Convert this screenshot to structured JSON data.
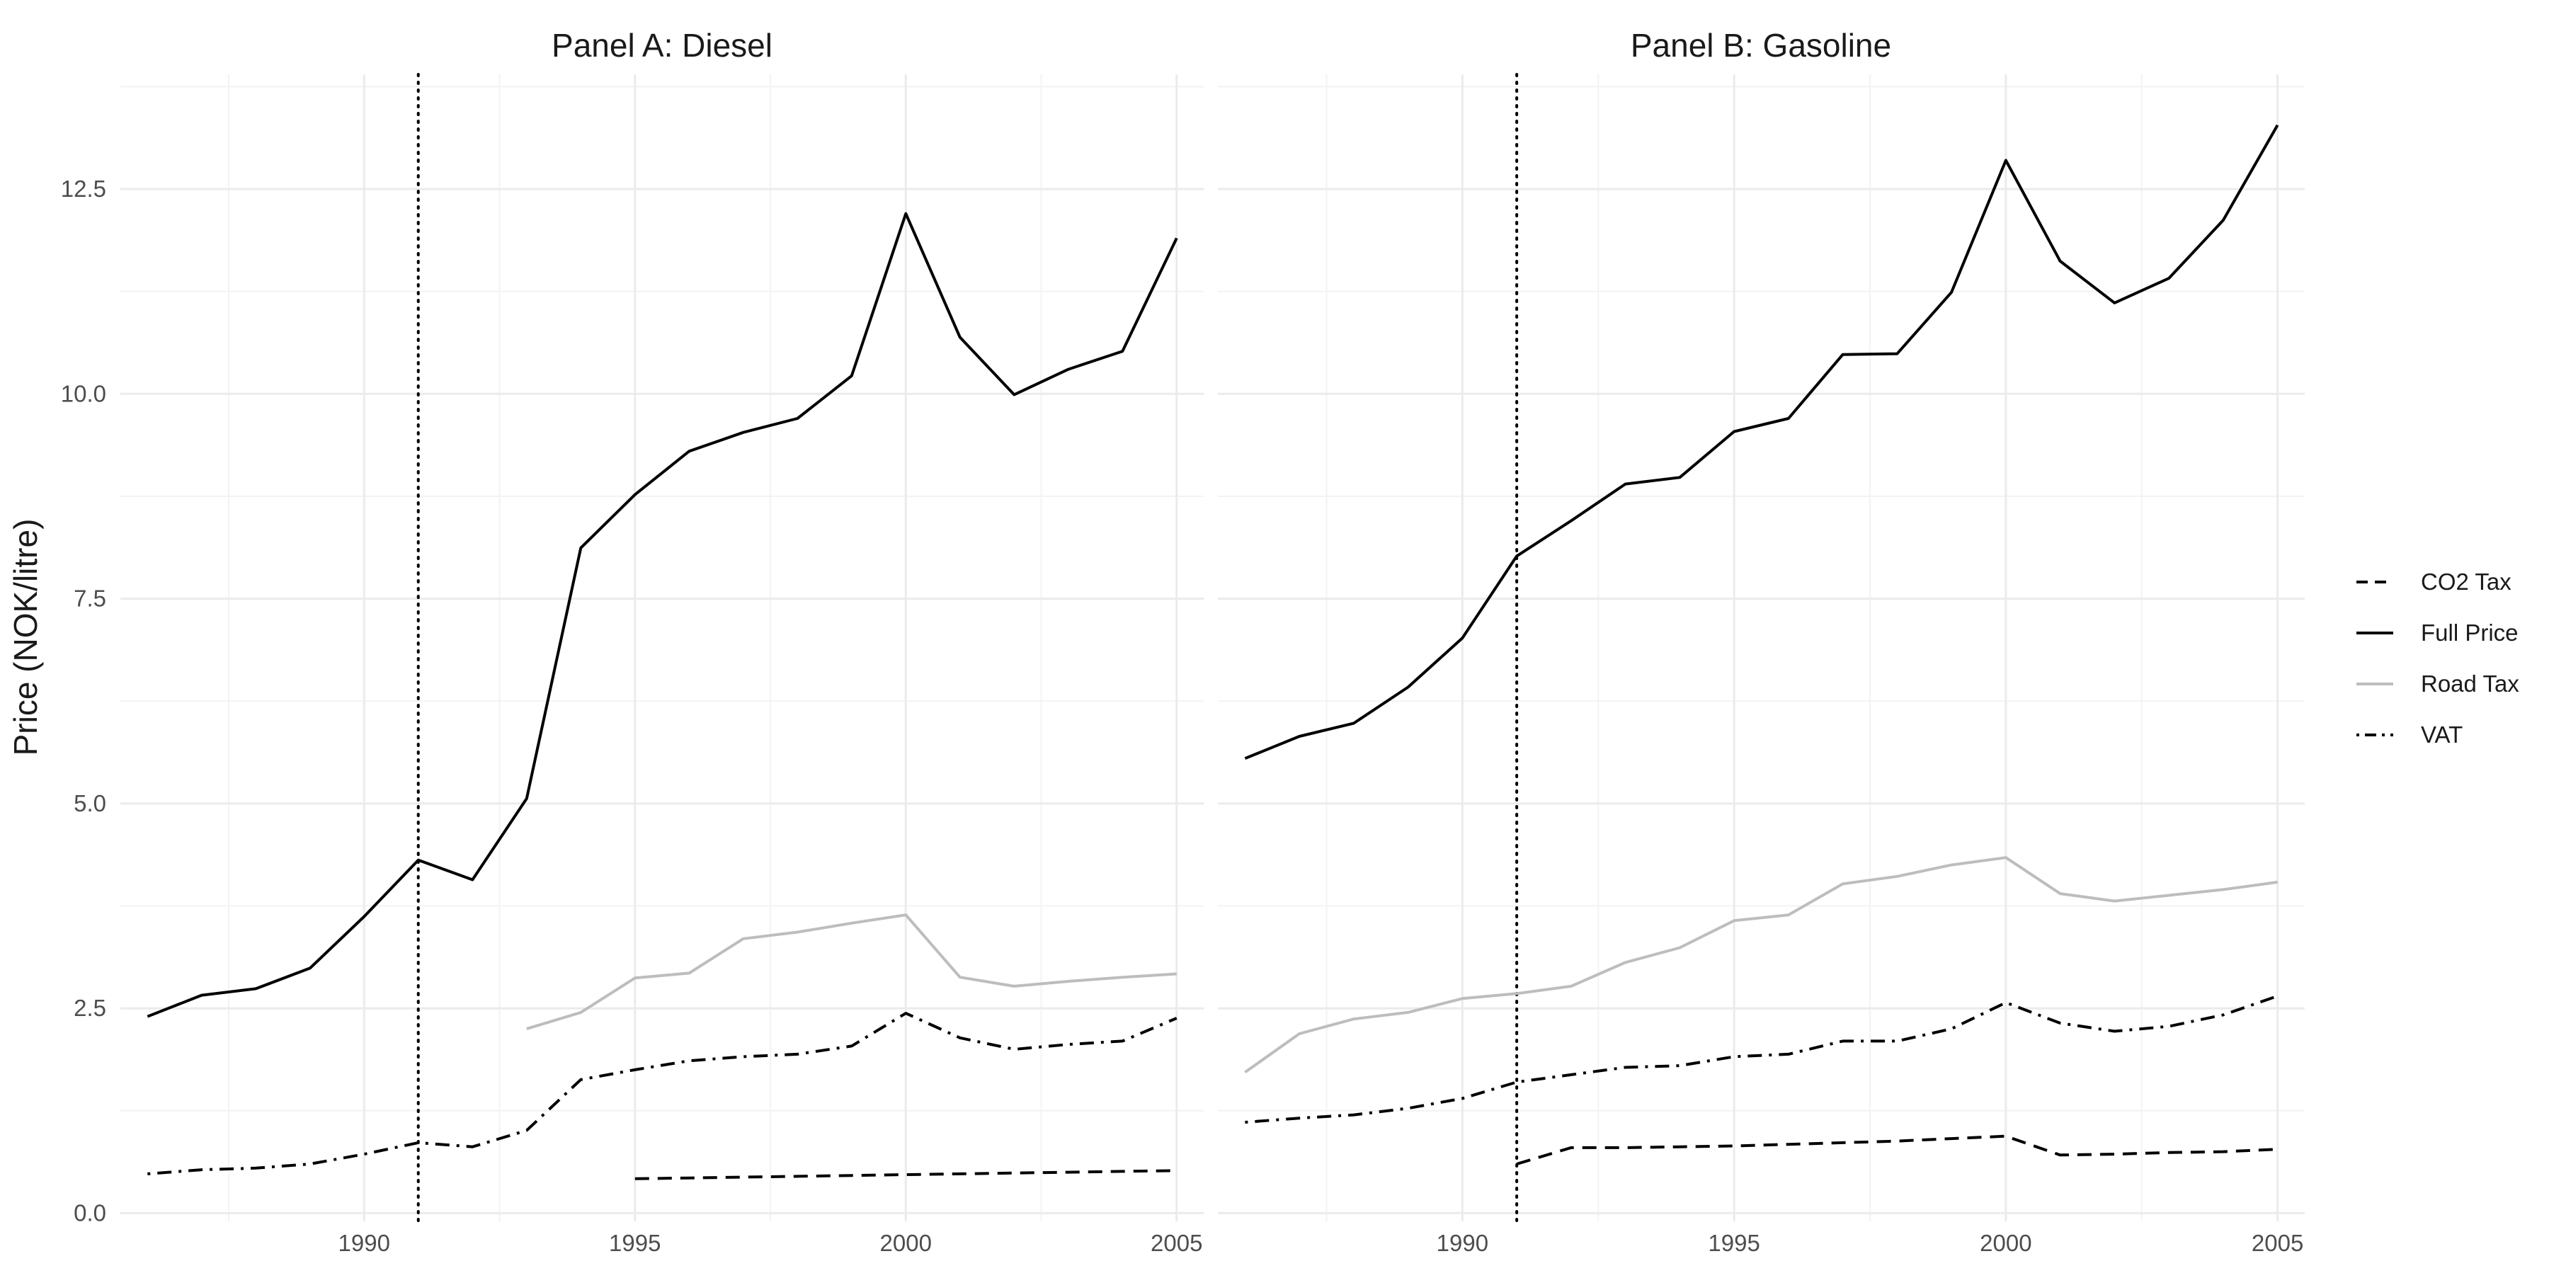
{
  "chart_data": {
    "type": "line",
    "ylabel": "Price (NOK/litre)",
    "xlabel": "",
    "xlim": [
      1985.5,
      2005.5
    ],
    "ylim": [
      -0.1,
      13.9
    ],
    "x_ticks": [
      1990,
      1995,
      2000,
      2005
    ],
    "y_ticks": [
      0.0,
      2.5,
      5.0,
      7.5,
      10.0,
      12.5
    ],
    "y_tick_labels": [
      "0.0",
      "2.5",
      "5.0",
      "7.5",
      "10.0",
      "12.5"
    ],
    "grid": true,
    "vline_x": 1991,
    "legend_position": "right",
    "legend": [
      {
        "label": "CO2 Tax",
        "color": "#000000",
        "dash": "dashed"
      },
      {
        "label": "Full Price",
        "color": "#000000",
        "dash": "solid"
      },
      {
        "label": "Road Tax",
        "color": "#bdbdbd",
        "dash": "solid"
      },
      {
        "label": "VAT",
        "color": "#000000",
        "dash": "dotdash"
      }
    ],
    "panels": [
      {
        "title": "Panel A: Diesel",
        "series": [
          {
            "name": "Full Price",
            "x": [
              1986,
              1987,
              1988,
              1989,
              1990,
              1991,
              1992,
              1993,
              1994,
              1995,
              1996,
              1997,
              1998,
              1999,
              2000,
              2001,
              2002,
              2003,
              2004,
              2005
            ],
            "y": [
              2.4,
              2.66,
              2.74,
              2.99,
              3.62,
              4.31,
              4.07,
              5.06,
              8.12,
              8.77,
              9.3,
              9.53,
              9.7,
              10.22,
              12.2,
              10.69,
              9.99,
              10.3,
              10.52,
              11.9
            ]
          },
          {
            "name": "Road Tax",
            "x": [
              1993,
              1994,
              1995,
              1996,
              1997,
              1998,
              1999,
              2000,
              2001,
              2002,
              2003,
              2004,
              2005
            ],
            "y": [
              2.25,
              2.45,
              2.87,
              2.93,
              3.35,
              3.43,
              3.54,
              3.64,
              2.88,
              2.77,
              2.83,
              2.88,
              2.92
            ]
          },
          {
            "name": "VAT",
            "x": [
              1986,
              1987,
              1988,
              1989,
              1990,
              1991,
              1992,
              1993,
              1994,
              1995,
              1996,
              1997,
              1998,
              1999,
              2000,
              2001,
              2002,
              2003,
              2004,
              2005
            ],
            "y": [
              0.48,
              0.53,
              0.55,
              0.6,
              0.72,
              0.86,
              0.81,
              1.01,
              1.63,
              1.75,
              1.86,
              1.91,
              1.94,
              2.04,
              2.44,
              2.14,
              2.0,
              2.06,
              2.1,
              2.38
            ]
          },
          {
            "name": "CO2 Tax",
            "x": [
              1995,
              1996,
              1997,
              1998,
              1999,
              2000,
              2001,
              2002,
              2003,
              2004,
              2005
            ],
            "y": [
              0.42,
              0.43,
              0.44,
              0.45,
              0.46,
              0.47,
              0.48,
              0.49,
              0.5,
              0.51,
              0.52
            ]
          }
        ]
      },
      {
        "title": "Panel B: Gasoline",
        "series": [
          {
            "name": "Full Price",
            "x": [
              1986,
              1987,
              1988,
              1989,
              1990,
              1991,
              1992,
              1993,
              1994,
              1995,
              1996,
              1997,
              1998,
              1999,
              2000,
              2001,
              2002,
              2003,
              2004,
              2005
            ],
            "y": [
              5.55,
              5.82,
              5.98,
              6.42,
              7.02,
              8.02,
              8.45,
              8.9,
              8.98,
              9.54,
              9.7,
              10.48,
              10.49,
              11.24,
              12.85,
              11.62,
              11.11,
              11.41,
              12.12,
              13.28
            ]
          },
          {
            "name": "Road Tax",
            "x": [
              1986,
              1987,
              1988,
              1989,
              1990,
              1991,
              1992,
              1993,
              1994,
              1995,
              1996,
              1997,
              1998,
              1999,
              2000,
              2001,
              2002,
              2003,
              2004,
              2005
            ],
            "y": [
              1.72,
              2.19,
              2.37,
              2.45,
              2.62,
              2.68,
              2.77,
              3.06,
              3.24,
              3.57,
              3.64,
              4.02,
              4.11,
              4.25,
              4.34,
              3.9,
              3.81,
              3.88,
              3.95,
              4.04
            ]
          },
          {
            "name": "VAT",
            "x": [
              1986,
              1987,
              1988,
              1989,
              1990,
              1991,
              1992,
              1993,
              1994,
              1995,
              1996,
              1997,
              1998,
              1999,
              2000,
              2001,
              2002,
              2003,
              2004,
              2005
            ],
            "y": [
              1.11,
              1.16,
              1.2,
              1.28,
              1.4,
              1.6,
              1.69,
              1.78,
              1.8,
              1.91,
              1.94,
              2.1,
              2.1,
              2.25,
              2.57,
              2.32,
              2.22,
              2.28,
              2.42,
              2.65
            ]
          },
          {
            "name": "CO2 Tax",
            "x": [
              1991,
              1992,
              1993,
              1994,
              1995,
              1996,
              1997,
              1998,
              1999,
              2000,
              2001,
              2002,
              2003,
              2004,
              2005
            ],
            "y": [
              0.6,
              0.8,
              0.8,
              0.81,
              0.82,
              0.84,
              0.86,
              0.88,
              0.91,
              0.94,
              0.71,
              0.72,
              0.74,
              0.75,
              0.78
            ]
          }
        ]
      }
    ]
  }
}
